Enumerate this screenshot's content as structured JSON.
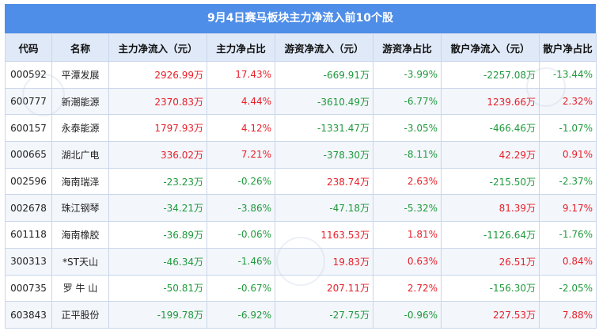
{
  "title": "9月4日赛马板块主力净流入前10个股",
  "columns": [
    "代码",
    "名称",
    "主力净流入（元）",
    "主力净占比",
    "游资净流入（元）",
    "游资净占比",
    "散户净流入（元）",
    "散户净占比"
  ],
  "rows": [
    {
      "code": "000592",
      "name": "平潭发展",
      "main": "2926.99万",
      "main_pct": "17.43%",
      "hot": "-669.91万",
      "hot_pct": "-3.99%",
      "retail": "-2257.08万",
      "retail_pct": "-13.44%"
    },
    {
      "code": "600777",
      "name": "新潮能源",
      "main": "2370.83万",
      "main_pct": "4.44%",
      "hot": "-3610.49万",
      "hot_pct": "-6.77%",
      "retail": "1239.66万",
      "retail_pct": "2.32%"
    },
    {
      "code": "600157",
      "name": "永泰能源",
      "main": "1797.93万",
      "main_pct": "4.12%",
      "hot": "-1331.47万",
      "hot_pct": "-3.05%",
      "retail": "-466.46万",
      "retail_pct": "-1.07%"
    },
    {
      "code": "000665",
      "name": "湖北广电",
      "main": "336.02万",
      "main_pct": "7.21%",
      "hot": "-378.30万",
      "hot_pct": "-8.11%",
      "retail": "42.29万",
      "retail_pct": "0.91%"
    },
    {
      "code": "002596",
      "name": "海南瑞泽",
      "main": "-23.23万",
      "main_pct": "-0.26%",
      "hot": "238.74万",
      "hot_pct": "2.63%",
      "retail": "-215.50万",
      "retail_pct": "-2.37%"
    },
    {
      "code": "002678",
      "name": "珠江钢琴",
      "main": "-34.21万",
      "main_pct": "-3.86%",
      "hot": "-47.18万",
      "hot_pct": "-5.32%",
      "retail": "81.39万",
      "retail_pct": "9.17%"
    },
    {
      "code": "601118",
      "name": "海南橡胶",
      "main": "-36.89万",
      "main_pct": "-0.06%",
      "hot": "1163.53万",
      "hot_pct": "1.81%",
      "retail": "-1126.64万",
      "retail_pct": "-1.76%"
    },
    {
      "code": "300313",
      "name": "*ST天山",
      "main": "-46.34万",
      "main_pct": "-1.46%",
      "hot": "19.83万",
      "hot_pct": "0.63%",
      "retail": "26.51万",
      "retail_pct": "0.84%"
    },
    {
      "code": "000735",
      "name": "罗 牛 山",
      "main": "-50.81万",
      "main_pct": "-0.67%",
      "hot": "207.11万",
      "hot_pct": "2.72%",
      "retail": "-156.30万",
      "retail_pct": "-2.05%"
    },
    {
      "code": "603843",
      "name": "正平股份",
      "main": "-199.78万",
      "main_pct": "-6.92%",
      "hot": "-27.75万",
      "hot_pct": "-0.96%",
      "retail": "227.53万",
      "retail_pct": "7.88%"
    }
  ],
  "colors": {
    "header_bar": "#4e8ee8",
    "positive": "#e8202a",
    "negative": "#1f9a3c"
  }
}
